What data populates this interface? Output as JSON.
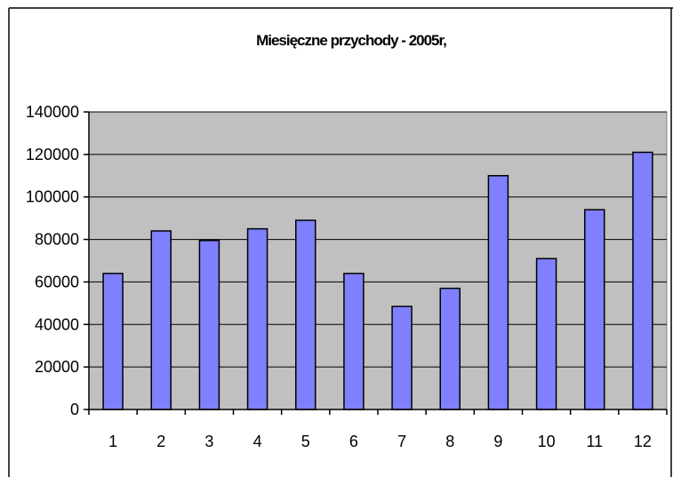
{
  "chart_data": {
    "type": "bar",
    "title": "Miesięczne przychody - 2005r,",
    "xlabel": "",
    "ylabel": "",
    "categories": [
      "1",
      "2",
      "3",
      "4",
      "5",
      "6",
      "7",
      "8",
      "9",
      "10",
      "11",
      "12"
    ],
    "values": [
      64000,
      84000,
      79500,
      85000,
      89000,
      64000,
      48500,
      57000,
      110000,
      71000,
      94000,
      121000
    ],
    "ylim": [
      0,
      140000
    ],
    "yticks": [
      "0",
      "20000",
      "40000",
      "60000",
      "80000",
      "100000",
      "120000",
      "140000"
    ],
    "grid": true,
    "legend": "none",
    "colors": {
      "bar_fill": "#8080ff",
      "bar_stroke": "#000000",
      "plot_background": "#c0c0c0",
      "gridline": "#000000",
      "frame": "#000000"
    }
  }
}
